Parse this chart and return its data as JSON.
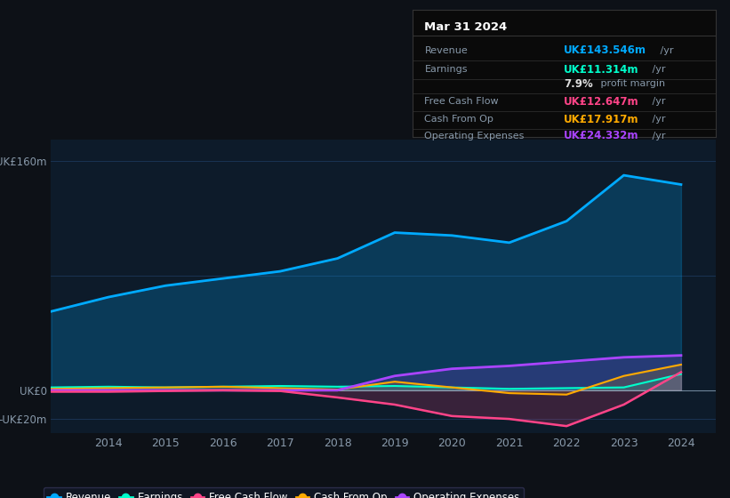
{
  "bg_color": "#0d1117",
  "plot_bg_color": "#0d1b2a",
  "grid_color": "#1e3a5f",
  "text_color": "#8899aa",
  "years": [
    2013,
    2014,
    2015,
    2016,
    2017,
    2018,
    2019,
    2020,
    2021,
    2022,
    2023,
    2024
  ],
  "revenue": [
    55,
    65,
    73,
    78,
    83,
    92,
    110,
    108,
    103,
    118,
    150,
    143.546
  ],
  "earnings": [
    2,
    2.5,
    2,
    2.5,
    3,
    2.5,
    3,
    2,
    1,
    1.5,
    2,
    11.314
  ],
  "free_cash": [
    -1,
    -1,
    -0.5,
    0,
    -0.5,
    -5,
    -10,
    -18,
    -20,
    -25,
    -10,
    12.647
  ],
  "cash_from_op": [
    1,
    1.5,
    2,
    2.5,
    1.5,
    0.5,
    6,
    2,
    -2,
    -3,
    10,
    17.917
  ],
  "op_expenses": [
    0,
    0,
    0,
    0,
    0,
    0,
    10,
    15,
    17,
    20,
    23,
    24.332
  ],
  "revenue_color": "#00aaff",
  "earnings_color": "#00ffcc",
  "free_cash_color": "#ff4488",
  "cash_from_op_color": "#ffaa00",
  "op_expenses_color": "#aa44ff",
  "ylim_top": 175,
  "ylim_bottom": -30,
  "xtick_years": [
    2014,
    2015,
    2016,
    2017,
    2018,
    2019,
    2020,
    2021,
    2022,
    2023,
    2024
  ],
  "info_box": {
    "title": "Mar 31 2024",
    "bg": "#0a0a0a",
    "border": "#333333",
    "rows": [
      {
        "label": "Revenue",
        "value": "UK£143.546m",
        "unit": " /yr",
        "color": "#00aaff"
      },
      {
        "label": "Earnings",
        "value": "UK£11.314m",
        "unit": " /yr",
        "color": "#00ffcc"
      },
      {
        "label": "",
        "value": "7.9%",
        "unit": " profit margin",
        "color": "#dddddd"
      },
      {
        "label": "Free Cash Flow",
        "value": "UK£12.647m",
        "unit": " /yr",
        "color": "#ff4488"
      },
      {
        "label": "Cash From Op",
        "value": "UK£17.917m",
        "unit": " /yr",
        "color": "#ffaa00"
      },
      {
        "label": "Operating Expenses",
        "value": "UK£24.332m",
        "unit": " /yr",
        "color": "#aa44ff"
      }
    ]
  },
  "legend": [
    {
      "label": "Revenue",
      "color": "#00aaff"
    },
    {
      "label": "Earnings",
      "color": "#00ffcc"
    },
    {
      "label": "Free Cash Flow",
      "color": "#ff4488"
    },
    {
      "label": "Cash From Op",
      "color": "#ffaa00"
    },
    {
      "label": "Operating Expenses",
      "color": "#aa44ff"
    }
  ]
}
